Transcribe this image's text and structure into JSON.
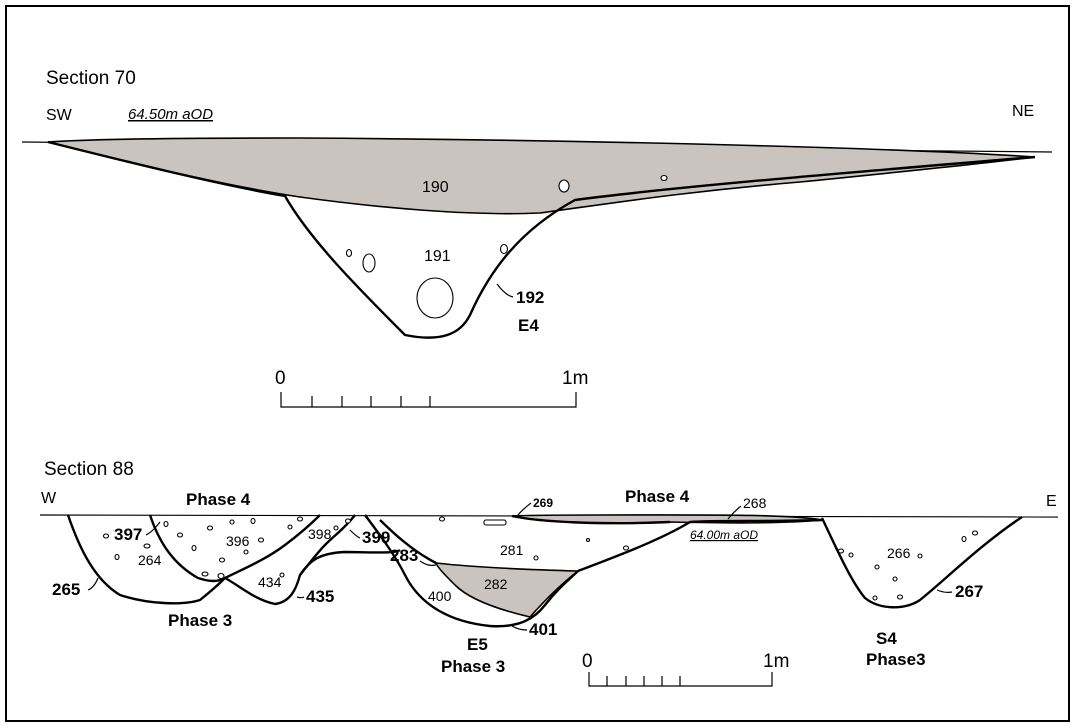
{
  "section70": {
    "title": "Section 70",
    "orient_left": "SW",
    "orient_right": "NE",
    "datum": "64.50m aOD",
    "ctx_190": "190",
    "ctx_191": "191",
    "cut_192": "192",
    "feature": "E4",
    "scale": {
      "start": "0",
      "end": "1m"
    },
    "colors": {
      "fill": "#c9c4c0"
    }
  },
  "section88": {
    "title": "Section 88",
    "orient_left": "W",
    "orient_right": "E",
    "phase4_left": "Phase 4",
    "phase4_right": "Phase 4",
    "datum": "64.00m aOD",
    "ctx": {
      "c397": "397",
      "c396": "396",
      "c264": "264",
      "c398": "398",
      "c399": "399",
      "c265": "265",
      "c434": "434",
      "c435": "435",
      "c283": "283",
      "c400": "400",
      "c282": "282",
      "c281": "281",
      "c269": "269",
      "c268": "268",
      "c401": "401",
      "c266": "266",
      "c267": "267"
    },
    "phase3_left": "Phase 3",
    "feature_e5": "E5",
    "phase3_mid": "Phase 3",
    "feature_s4": "S4",
    "phase3_right": "Phase3",
    "scale": {
      "start": "0",
      "end": "1m"
    }
  }
}
